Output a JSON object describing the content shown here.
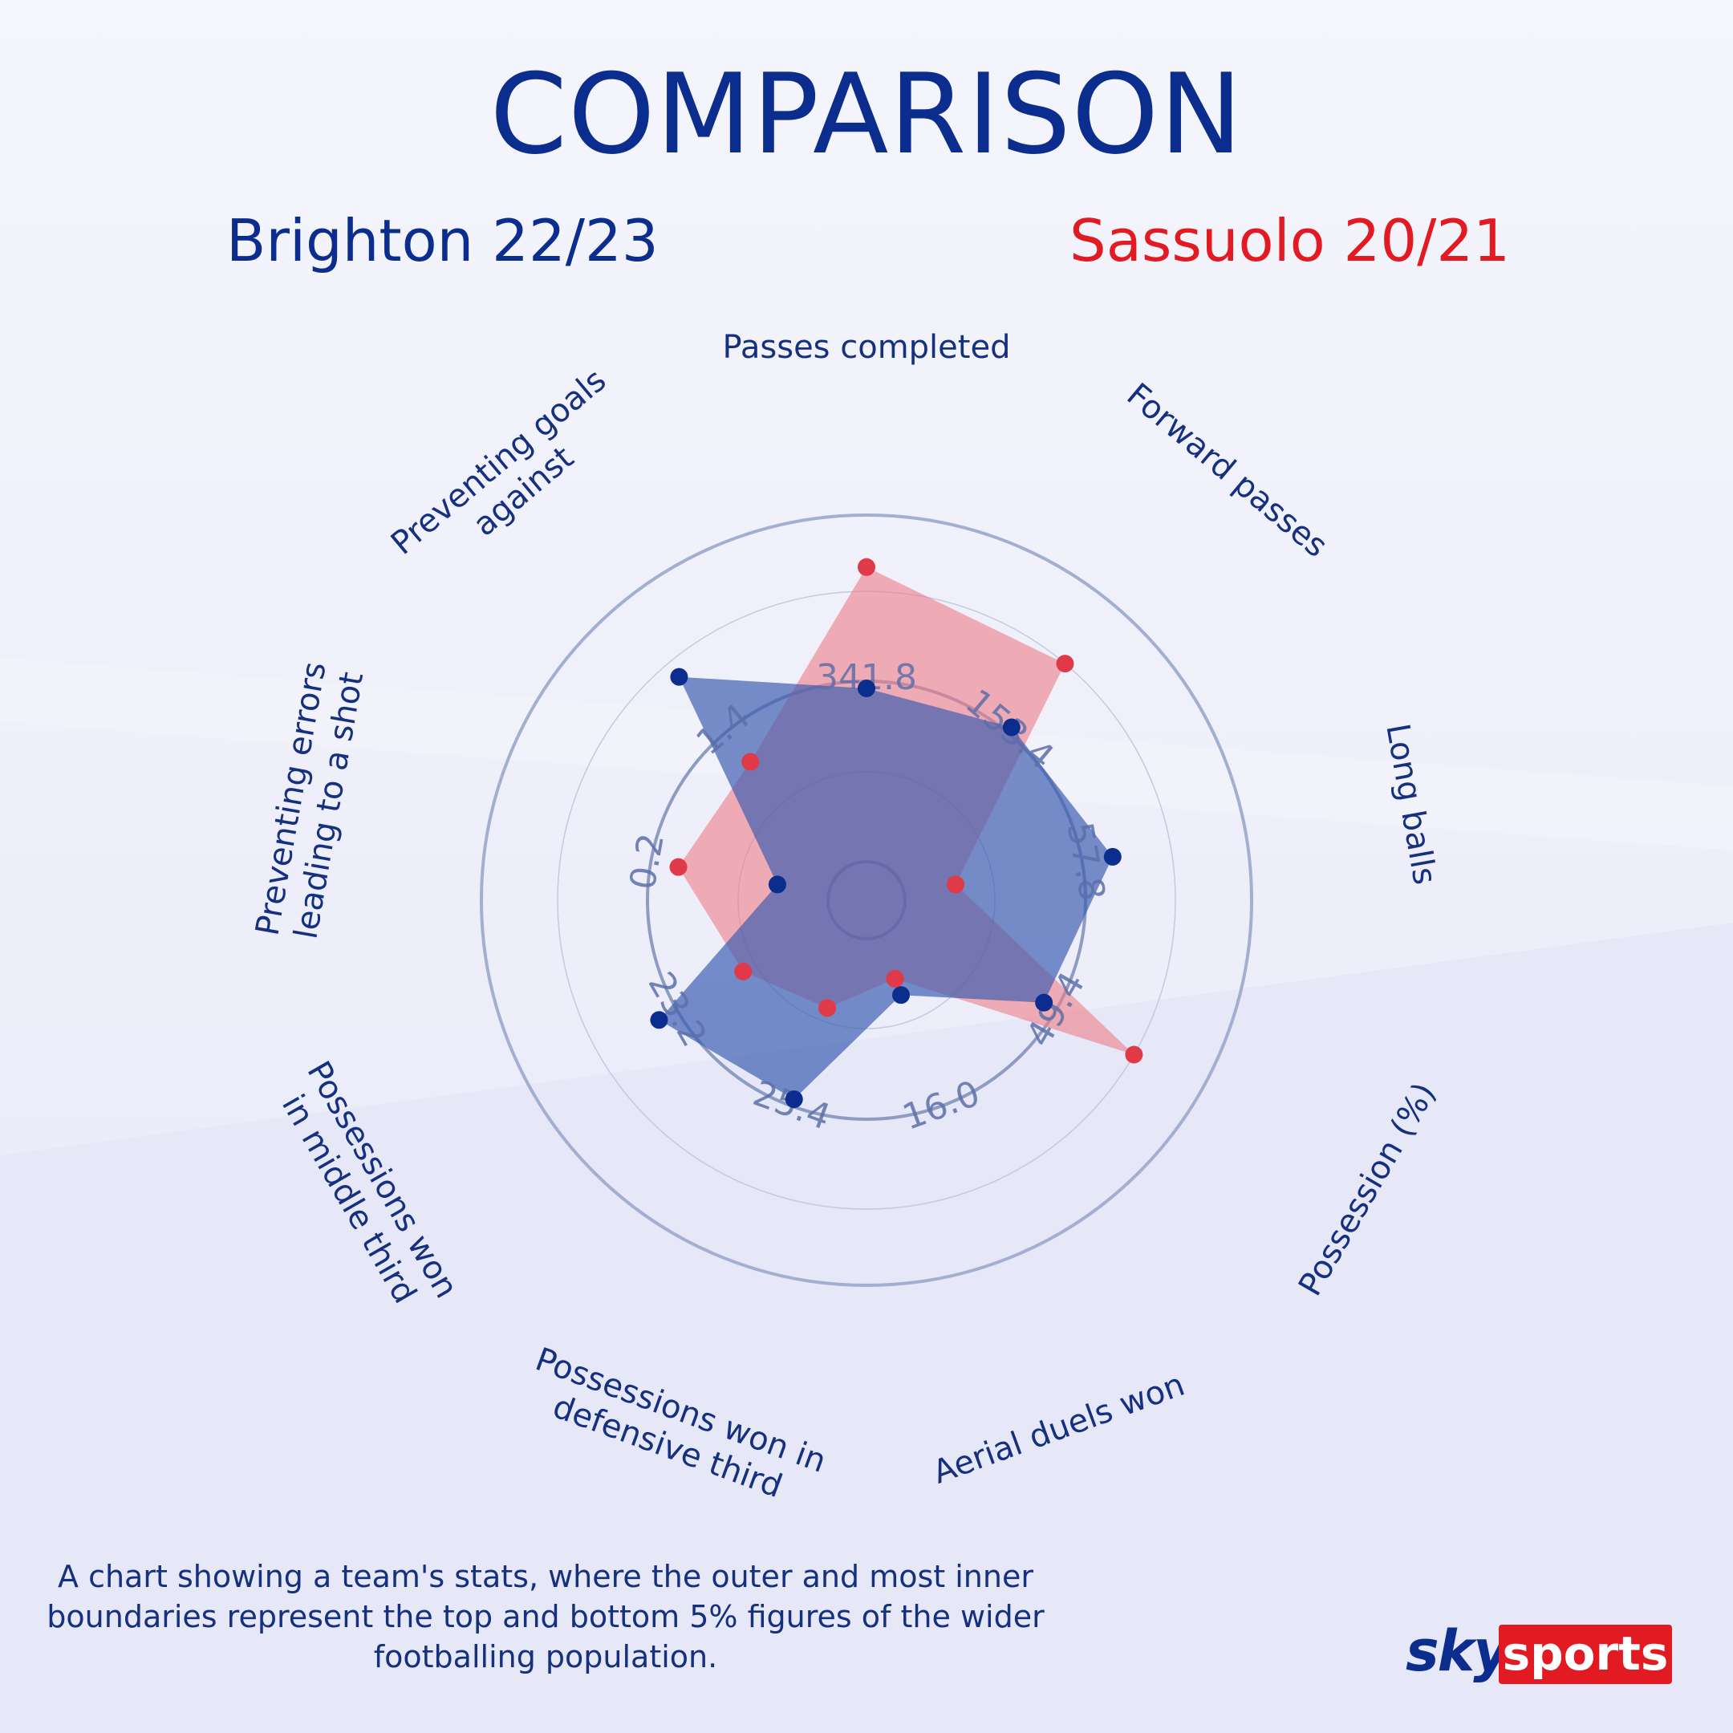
{
  "header": {
    "title": "COMPARISON"
  },
  "teams": {
    "a": {
      "name": "Brighton 22/23",
      "color": "#0b2d8e"
    },
    "b": {
      "name": "Sassuolo 20/21",
      "color": "#e21a22"
    }
  },
  "footnote": "A chart showing a team's stats, where the outer and most inner boundaries represent the top  and bottom 5% figures of the wider footballing population.",
  "logo": {
    "sky": "sky",
    "sports": "sports"
  },
  "chart_data": {
    "type": "radar",
    "categories": [
      "Passes completed",
      "Forward passes",
      "Long balls",
      "Possession (%)",
      "Aerial duels won",
      "Possessions won in defensive third",
      "Possessions won in middle third",
      "Preventing errors leading to a shot",
      "Preventing goals against"
    ],
    "axis_labels": [
      "341.8",
      "153.4",
      "57.8",
      "49.4",
      "16.0",
      "25.4",
      "23.2",
      "0.2",
      "1.4"
    ],
    "scale": "percentile",
    "range": [
      0,
      100
    ],
    "series": [
      {
        "name": "Brighton 22/23",
        "color": "#0b2d8e",
        "fill": "#3a5bb0",
        "values": [
          50,
          54,
          61,
          48,
          18,
          50,
          58,
          15,
          73
        ]
      },
      {
        "name": "Sassuolo 20/21",
        "color": "#e03a48",
        "fill": "#ef7d87",
        "values": [
          85,
          78,
          15,
          78,
          13,
          22,
          30,
          44,
          41
        ]
      }
    ],
    "grid": true,
    "legend": "top"
  }
}
